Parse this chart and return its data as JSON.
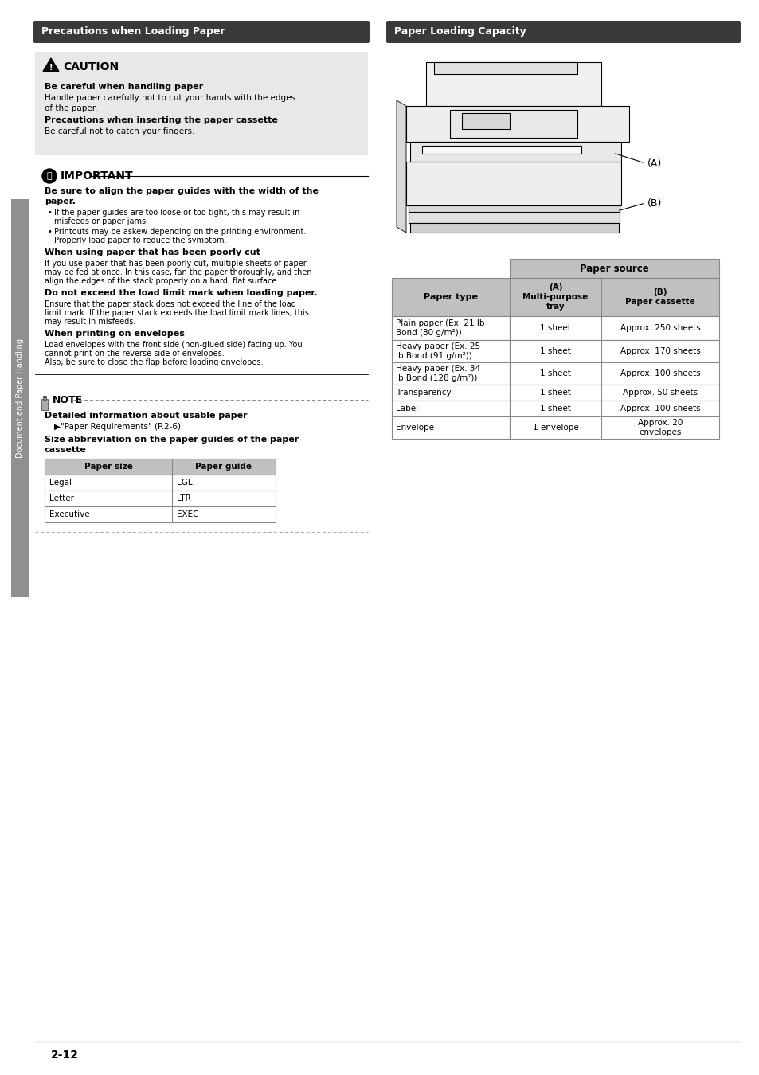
{
  "page_bg": "#ffffff",
  "header_bg": "#3a3a3a",
  "header_text_color": "#ffffff",
  "header_left": "Precautions when Loading Paper",
  "header_right": "Paper Loading Capacity",
  "caution_bg": "#e8e8e8",
  "caution_title": "CAUTION",
  "caution_bold1": "Be careful when handling paper",
  "caution_text1": "Handle paper carefully not to cut your hands with the edges\nof the paper.",
  "caution_bold2": "Precautions when inserting the paper cassette",
  "caution_text2": "Be careful not to catch your fingers.",
  "important_title": "IMPORTANT",
  "important_bold1": "Be sure to align the paper guides with the width of the paper.",
  "important_bullet1": "If the paper guides are too loose or too tight, this may result in misfeeds or paper jams.",
  "important_bullet2": "Printouts may be askew depending on the printing environment. Properly load paper to reduce the symptom.",
  "important_bold2": "When using paper that has been poorly cut",
  "important_text2": "If you use paper that has been poorly cut, multiple sheets of paper may be fed at once. In this case, fan the paper thoroughly, and then align the edges of the stack properly on a hard, flat surface.",
  "important_bold3": "Do not exceed the load limit mark when loading paper.",
  "important_text3": "Ensure that the paper stack does not exceed the line of the load limit mark. If the paper stack exceeds the load limit mark lines, this may result in misfeeds.",
  "important_bold4": "When printing on envelopes",
  "important_text4": "Load envelopes with the front side (non-glued side) facing up. You cannot print on the reverse side of envelopes.\nAlso, be sure to close the flap before loading envelopes.",
  "note_title": "NOTE",
  "note_bold1": "Detailed information about usable paper",
  "note_ref1": "▶\"Paper Requirements\" (P.2-6)",
  "note_bold2": "Size abbreviation on the paper guides of the paper cassette",
  "note_table_headers": [
    "Paper size",
    "Paper guide"
  ],
  "note_table_rows": [
    [
      "Legal",
      "LGL"
    ],
    [
      "Letter",
      "LTR"
    ],
    [
      "Executive",
      "EXEC"
    ]
  ],
  "capacity_table_header1": "Paper source",
  "capacity_col1_header": "Paper type",
  "capacity_col2_header": "(A)\nMulti-purpose\ntray",
  "capacity_col3_header": "(B)\nPaper cassette",
  "capacity_rows": [
    [
      "Plain paper (Ex. 21 lb\nBond (80 g/m²))",
      "1 sheet",
      "Approx. 250 sheets"
    ],
    [
      "Heavy paper (Ex. 25\nlb Bond (91 g/m²))",
      "1 sheet",
      "Approx. 170 sheets"
    ],
    [
      "Heavy paper (Ex. 34\nlb Bond (128 g/m²))",
      "1 sheet",
      "Approx. 100 sheets"
    ],
    [
      "Transparency",
      "1 sheet",
      "Approx. 50 sheets"
    ],
    [
      "Label",
      "1 sheet",
      "Approx. 100 sheets"
    ],
    [
      "Envelope",
      "1 envelope",
      "Approx. 20\nenvelopes"
    ]
  ],
  "sidebar_text": "Document and Paper Handling",
  "sidebar_bg": "#909090",
  "page_number": "2-12",
  "table_header_bg": "#c0c0c0",
  "table_border": "#888888"
}
